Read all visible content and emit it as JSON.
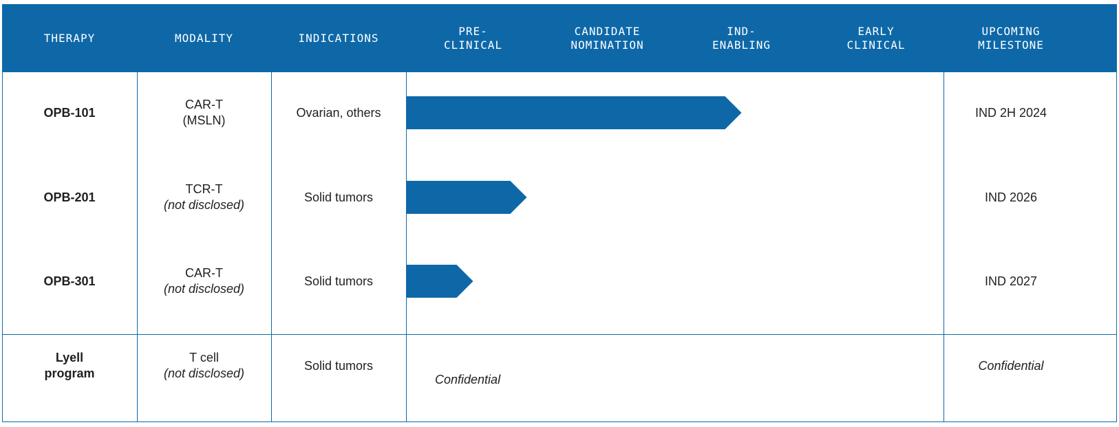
{
  "colors": {
    "brand_blue": "#0e68a8",
    "header_text": "#ffffff",
    "body_text": "#1f1f1f"
  },
  "header": {
    "therapy": "THERAPY",
    "modality": "MODALITY",
    "indications": "INDICATIONS",
    "stage1": "PRE-\nCLINICAL",
    "stage2": "CANDIDATE\nNOMINATION",
    "stage3": "IND-\nENABLING",
    "stage4": "EARLY\nCLINICAL",
    "milestone": "UPCOMING\nMILESTONE"
  },
  "chart_data": {
    "type": "bar",
    "orientation": "horizontal",
    "stages": [
      "PRE-CLINICAL",
      "CANDIDATE NOMINATION",
      "IND-ENABLING",
      "EARLY CLINICAL"
    ],
    "rows": [
      {
        "therapy": "OPB-101",
        "modality_1": "CAR-T",
        "modality_2": "(MSLN)",
        "indication": "Ovarian, others",
        "progress_stages": 2.5,
        "milestone": "IND 2H 2024"
      },
      {
        "therapy": "OPB-201",
        "modality_1": "TCR-T",
        "modality_2": "(not disclosed)",
        "indication": "Solid tumors",
        "progress_stages": 0.9,
        "milestone": "IND 2026"
      },
      {
        "therapy": "OPB-301",
        "modality_1": "CAR-T",
        "modality_2": "(not disclosed)",
        "indication": "Solid tumors",
        "progress_stages": 0.5,
        "milestone": "IND 2027"
      }
    ],
    "confidential_row": {
      "therapy_1": "Lyell",
      "therapy_2": "program",
      "modality_1": "T cell",
      "modality_2": "(not disclosed)",
      "indication": "Solid tumors",
      "stage_note": "Confidential",
      "milestone": "Confidential"
    }
  }
}
